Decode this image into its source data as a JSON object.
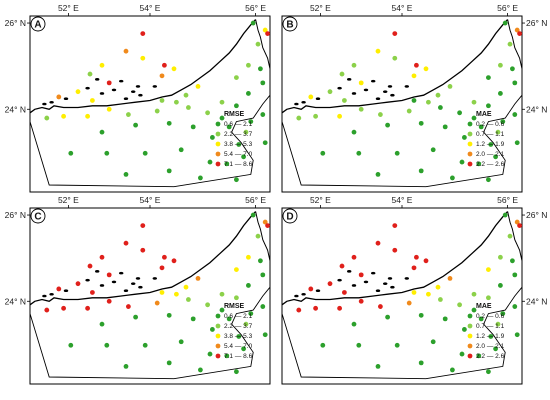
{
  "axes": {
    "x_ticks": [
      "52° E",
      "54° E",
      "56° E"
    ],
    "y_ticks": [
      "26° N",
      "24° N"
    ]
  },
  "colors": {
    "class1": "#2ca02c",
    "class2": "#8cd14a",
    "class3": "#ffee00",
    "class4": "#f08a1c",
    "class5": "#e0201b",
    "coast": "#000000",
    "frame": "#000000"
  },
  "panels": [
    {
      "letter": "A",
      "legend_title": "RMSE",
      "legend_labels": [
        "0.6 — 2.1",
        "2.2 — 3.7",
        "3.8 — 5.3",
        "5.4 — 7.0",
        "7.1 — 8.6"
      ],
      "stations": [
        [
          0.47,
          0.1,
          5
        ],
        [
          0.56,
          0.28,
          5
        ],
        [
          0.33,
          0.38,
          5
        ],
        [
          0.55,
          0.34,
          4
        ],
        [
          0.4,
          0.2,
          4
        ],
        [
          0.3,
          0.28,
          3
        ],
        [
          0.47,
          0.24,
          3
        ],
        [
          0.6,
          0.3,
          3
        ],
        [
          0.2,
          0.43,
          3
        ],
        [
          0.25,
          0.33,
          2
        ],
        [
          0.12,
          0.46,
          4
        ],
        [
          0.26,
          0.48,
          3
        ],
        [
          0.7,
          0.4,
          3
        ],
        [
          0.65,
          0.45,
          2
        ],
        [
          0.07,
          0.58,
          2
        ],
        [
          0.14,
          0.57,
          3
        ],
        [
          0.24,
          0.57,
          3
        ],
        [
          0.33,
          0.53,
          3
        ],
        [
          0.41,
          0.56,
          2
        ],
        [
          0.53,
          0.54,
          2
        ],
        [
          0.55,
          0.48,
          2
        ],
        [
          0.61,
          0.49,
          2
        ],
        [
          0.66,
          0.52,
          2
        ],
        [
          0.74,
          0.55,
          2
        ],
        [
          0.8,
          0.49,
          2
        ],
        [
          0.86,
          0.35,
          2
        ],
        [
          0.91,
          0.28,
          2
        ],
        [
          0.95,
          0.16,
          2
        ],
        [
          0.96,
          0.3,
          1
        ],
        [
          0.91,
          0.44,
          1
        ],
        [
          0.86,
          0.51,
          1
        ],
        [
          0.97,
          0.38,
          1
        ],
        [
          0.98,
          0.08,
          3
        ],
        [
          0.99,
          0.1,
          5
        ],
        [
          0.93,
          0.04,
          1
        ],
        [
          0.83,
          0.63,
          1
        ],
        [
          0.9,
          0.66,
          2
        ],
        [
          0.87,
          0.73,
          1
        ],
        [
          0.89,
          0.8,
          1
        ],
        [
          0.82,
          0.84,
          1
        ],
        [
          0.76,
          0.69,
          1
        ],
        [
          0.68,
          0.63,
          1
        ],
        [
          0.58,
          0.61,
          1
        ],
        [
          0.44,
          0.62,
          1
        ],
        [
          0.3,
          0.66,
          1
        ],
        [
          0.17,
          0.78,
          1
        ],
        [
          0.32,
          0.78,
          1
        ],
        [
          0.48,
          0.78,
          1
        ],
        [
          0.63,
          0.76,
          1
        ],
        [
          0.58,
          0.88,
          1
        ],
        [
          0.4,
          0.9,
          1
        ],
        [
          0.75,
          0.83,
          1
        ],
        [
          0.71,
          0.92,
          1
        ],
        [
          0.86,
          0.93,
          1
        ],
        [
          0.97,
          0.56,
          1
        ],
        [
          0.98,
          0.72,
          1
        ],
        [
          0.8,
          0.58,
          1
        ],
        [
          0.92,
          0.6,
          1
        ]
      ]
    },
    {
      "letter": "B",
      "legend_title": "MAE",
      "legend_labels": [
        "0.2 — 0.6",
        "0.7 — 1.1",
        "1.2 — 1.9",
        "2.0 — 2.1",
        "2.2 — 2.6"
      ],
      "stations": [
        [
          0.47,
          0.1,
          5
        ],
        [
          0.56,
          0.28,
          5
        ],
        [
          0.33,
          0.38,
          3
        ],
        [
          0.55,
          0.34,
          3
        ],
        [
          0.4,
          0.2,
          3
        ],
        [
          0.3,
          0.28,
          2
        ],
        [
          0.47,
          0.24,
          2
        ],
        [
          0.6,
          0.3,
          3
        ],
        [
          0.2,
          0.43,
          2
        ],
        [
          0.25,
          0.33,
          2
        ],
        [
          0.12,
          0.46,
          3
        ],
        [
          0.26,
          0.48,
          2
        ],
        [
          0.7,
          0.4,
          2
        ],
        [
          0.65,
          0.45,
          2
        ],
        [
          0.07,
          0.58,
          2
        ],
        [
          0.14,
          0.57,
          2
        ],
        [
          0.24,
          0.57,
          3
        ],
        [
          0.33,
          0.53,
          2
        ],
        [
          0.41,
          0.56,
          2
        ],
        [
          0.53,
          0.54,
          2
        ],
        [
          0.55,
          0.48,
          1
        ],
        [
          0.61,
          0.49,
          2
        ],
        [
          0.66,
          0.52,
          1
        ],
        [
          0.74,
          0.55,
          1
        ],
        [
          0.8,
          0.49,
          2
        ],
        [
          0.86,
          0.35,
          1
        ],
        [
          0.91,
          0.28,
          2
        ],
        [
          0.95,
          0.16,
          2
        ],
        [
          0.96,
          0.3,
          1
        ],
        [
          0.91,
          0.44,
          1
        ],
        [
          0.86,
          0.51,
          1
        ],
        [
          0.97,
          0.38,
          1
        ],
        [
          0.98,
          0.08,
          4
        ],
        [
          0.99,
          0.1,
          5
        ],
        [
          0.93,
          0.04,
          1
        ],
        [
          0.83,
          0.63,
          1
        ],
        [
          0.9,
          0.66,
          2
        ],
        [
          0.87,
          0.73,
          1
        ],
        [
          0.89,
          0.8,
          1
        ],
        [
          0.82,
          0.84,
          1
        ],
        [
          0.76,
          0.69,
          1
        ],
        [
          0.68,
          0.63,
          1
        ],
        [
          0.58,
          0.61,
          1
        ],
        [
          0.44,
          0.62,
          1
        ],
        [
          0.3,
          0.66,
          1
        ],
        [
          0.17,
          0.78,
          1
        ],
        [
          0.32,
          0.78,
          1
        ],
        [
          0.48,
          0.78,
          1
        ],
        [
          0.63,
          0.76,
          1
        ],
        [
          0.58,
          0.88,
          1
        ],
        [
          0.4,
          0.9,
          1
        ],
        [
          0.75,
          0.83,
          1
        ],
        [
          0.71,
          0.92,
          1
        ],
        [
          0.86,
          0.93,
          1
        ],
        [
          0.97,
          0.56,
          1
        ],
        [
          0.98,
          0.72,
          1
        ],
        [
          0.8,
          0.58,
          1
        ],
        [
          0.92,
          0.6,
          1
        ]
      ]
    },
    {
      "letter": "C",
      "legend_title": "RMSE",
      "legend_labels": [
        "0.6 — 2.1",
        "2.2 — 3.7",
        "3.8 — 5.3",
        "5.4 — 7.0",
        "7.1 — 8.6"
      ],
      "stations": [
        [
          0.47,
          0.1,
          5
        ],
        [
          0.56,
          0.28,
          5
        ],
        [
          0.33,
          0.38,
          5
        ],
        [
          0.55,
          0.34,
          5
        ],
        [
          0.4,
          0.2,
          5
        ],
        [
          0.3,
          0.28,
          5
        ],
        [
          0.47,
          0.24,
          5
        ],
        [
          0.6,
          0.3,
          5
        ],
        [
          0.2,
          0.43,
          5
        ],
        [
          0.25,
          0.33,
          5
        ],
        [
          0.12,
          0.46,
          5
        ],
        [
          0.26,
          0.48,
          5
        ],
        [
          0.7,
          0.4,
          4
        ],
        [
          0.65,
          0.45,
          3
        ],
        [
          0.07,
          0.58,
          5
        ],
        [
          0.14,
          0.57,
          5
        ],
        [
          0.24,
          0.57,
          5
        ],
        [
          0.33,
          0.53,
          5
        ],
        [
          0.41,
          0.56,
          5
        ],
        [
          0.53,
          0.54,
          4
        ],
        [
          0.55,
          0.48,
          3
        ],
        [
          0.61,
          0.49,
          3
        ],
        [
          0.66,
          0.52,
          2
        ],
        [
          0.74,
          0.55,
          2
        ],
        [
          0.8,
          0.49,
          2
        ],
        [
          0.86,
          0.35,
          3
        ],
        [
          0.91,
          0.28,
          3
        ],
        [
          0.95,
          0.16,
          2
        ],
        [
          0.96,
          0.3,
          1
        ],
        [
          0.91,
          0.44,
          1
        ],
        [
          0.86,
          0.51,
          2
        ],
        [
          0.97,
          0.38,
          1
        ],
        [
          0.98,
          0.08,
          4
        ],
        [
          0.99,
          0.1,
          5
        ],
        [
          0.93,
          0.04,
          1
        ],
        [
          0.83,
          0.63,
          1
        ],
        [
          0.9,
          0.66,
          2
        ],
        [
          0.87,
          0.73,
          1
        ],
        [
          0.89,
          0.8,
          1
        ],
        [
          0.82,
          0.84,
          1
        ],
        [
          0.76,
          0.69,
          1
        ],
        [
          0.68,
          0.63,
          1
        ],
        [
          0.58,
          0.61,
          1
        ],
        [
          0.44,
          0.62,
          1
        ],
        [
          0.3,
          0.66,
          1
        ],
        [
          0.17,
          0.78,
          1
        ],
        [
          0.32,
          0.78,
          1
        ],
        [
          0.48,
          0.78,
          1
        ],
        [
          0.63,
          0.76,
          1
        ],
        [
          0.58,
          0.88,
          1
        ],
        [
          0.4,
          0.9,
          1
        ],
        [
          0.75,
          0.83,
          1
        ],
        [
          0.71,
          0.92,
          1
        ],
        [
          0.86,
          0.93,
          1
        ],
        [
          0.97,
          0.56,
          1
        ],
        [
          0.98,
          0.72,
          1
        ],
        [
          0.8,
          0.58,
          1
        ],
        [
          0.92,
          0.6,
          1
        ]
      ]
    },
    {
      "letter": "D",
      "legend_title": "MAE",
      "legend_labels": [
        "0.2 — 0.6",
        "0.7 — 1.1",
        "1.2 — 1.9",
        "2.0 — 2.1",
        "2.2 — 2.6"
      ],
      "stations": [
        [
          0.47,
          0.1,
          5
        ],
        [
          0.56,
          0.28,
          5
        ],
        [
          0.33,
          0.38,
          5
        ],
        [
          0.55,
          0.34,
          5
        ],
        [
          0.4,
          0.2,
          5
        ],
        [
          0.3,
          0.28,
          5
        ],
        [
          0.47,
          0.24,
          5
        ],
        [
          0.6,
          0.3,
          5
        ],
        [
          0.2,
          0.43,
          5
        ],
        [
          0.25,
          0.33,
          5
        ],
        [
          0.12,
          0.46,
          5
        ],
        [
          0.26,
          0.48,
          5
        ],
        [
          0.7,
          0.4,
          4
        ],
        [
          0.65,
          0.45,
          3
        ],
        [
          0.07,
          0.58,
          5
        ],
        [
          0.14,
          0.57,
          5
        ],
        [
          0.24,
          0.57,
          5
        ],
        [
          0.33,
          0.53,
          5
        ],
        [
          0.41,
          0.56,
          5
        ],
        [
          0.53,
          0.54,
          4
        ],
        [
          0.55,
          0.48,
          3
        ],
        [
          0.61,
          0.49,
          3
        ],
        [
          0.66,
          0.52,
          2
        ],
        [
          0.74,
          0.55,
          2
        ],
        [
          0.8,
          0.49,
          2
        ],
        [
          0.86,
          0.35,
          3
        ],
        [
          0.91,
          0.28,
          2
        ],
        [
          0.95,
          0.16,
          2
        ],
        [
          0.96,
          0.3,
          1
        ],
        [
          0.91,
          0.44,
          1
        ],
        [
          0.86,
          0.51,
          2
        ],
        [
          0.97,
          0.38,
          1
        ],
        [
          0.98,
          0.08,
          4
        ],
        [
          0.99,
          0.1,
          5
        ],
        [
          0.93,
          0.04,
          1
        ],
        [
          0.83,
          0.63,
          1
        ],
        [
          0.9,
          0.66,
          2
        ],
        [
          0.87,
          0.73,
          1
        ],
        [
          0.89,
          0.8,
          1
        ],
        [
          0.82,
          0.84,
          1
        ],
        [
          0.76,
          0.69,
          1
        ],
        [
          0.68,
          0.63,
          1
        ],
        [
          0.58,
          0.61,
          1
        ],
        [
          0.44,
          0.62,
          1
        ],
        [
          0.3,
          0.66,
          1
        ],
        [
          0.17,
          0.78,
          1
        ],
        [
          0.32,
          0.78,
          1
        ],
        [
          0.48,
          0.78,
          1
        ],
        [
          0.63,
          0.76,
          1
        ],
        [
          0.58,
          0.88,
          1
        ],
        [
          0.4,
          0.9,
          1
        ],
        [
          0.75,
          0.83,
          1
        ],
        [
          0.71,
          0.92,
          1
        ],
        [
          0.86,
          0.93,
          1
        ],
        [
          0.97,
          0.56,
          1
        ],
        [
          0.98,
          0.72,
          1
        ],
        [
          0.8,
          0.58,
          1
        ],
        [
          0.92,
          0.6,
          1
        ]
      ]
    }
  ]
}
